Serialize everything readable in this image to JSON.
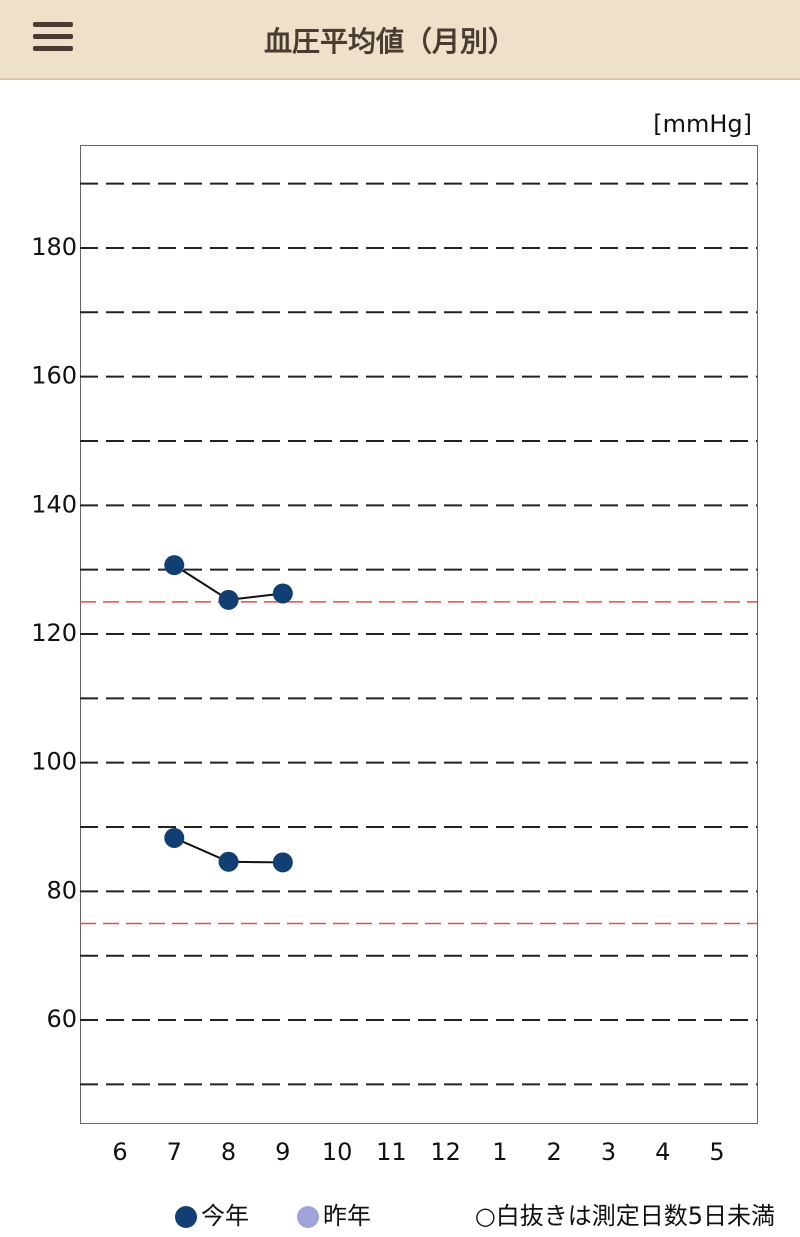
{
  "header": {
    "title": "血圧平均値（月別）"
  },
  "chart_data": {
    "type": "line",
    "y_unit_label": "[mmHg]",
    "categories": [
      "6",
      "7",
      "8",
      "9",
      "10",
      "11",
      "12",
      "1",
      "2",
      "3",
      "4",
      "5"
    ],
    "series": [
      {
        "color": "#123f73",
        "values": [
          null,
          130.7,
          125.3,
          126.3,
          null,
          null,
          null,
          null,
          null,
          null,
          null,
          null
        ]
      },
      {
        "color": "#123f73",
        "values": [
          null,
          88.3,
          84.6,
          84.5,
          null,
          null,
          null,
          null,
          null,
          null,
          null,
          null
        ]
      }
    ],
    "ylim": [
      44,
      196
    ],
    "yticks": [
      60,
      80,
      100,
      120,
      140,
      160,
      180
    ],
    "minor_yticks": [
      50,
      70,
      90,
      110,
      130,
      150,
      170,
      190
    ],
    "reference_lines": [
      {
        "value": 125,
        "color": "#e0504a"
      },
      {
        "value": 75,
        "color": "#e0504a"
      }
    ],
    "legend": [
      {
        "label": "今年",
        "color": "#123f73"
      },
      {
        "label": "昨年",
        "color": "#a0a4d8"
      }
    ],
    "note": "○白抜きは測定日数5日未満"
  }
}
